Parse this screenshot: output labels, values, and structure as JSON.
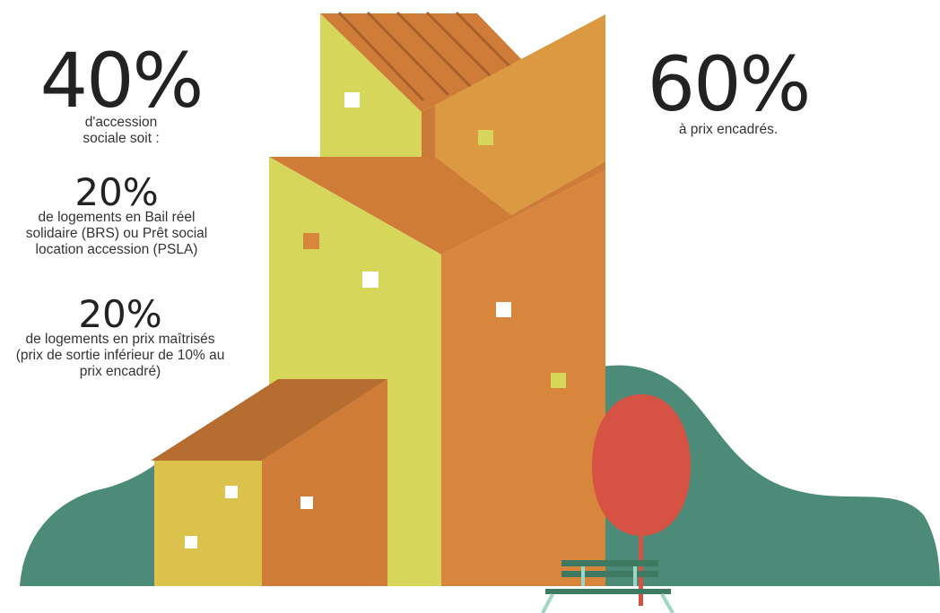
{
  "left_block": {
    "main_percent": "40%",
    "main_caption": "d'accession sociale soit :",
    "sub1_percent": "20%",
    "sub1_caption": "de logements en Bail réel solidaire (BRS) ou Prêt social location accession (PSLA)",
    "sub2_percent": "20%",
    "sub2_caption": "de logements en prix maîtrisés (prix de sortie inférieur de 10% au prix encadré)"
  },
  "right_block": {
    "main_percent": "60%",
    "main_caption": "à prix encadrés."
  },
  "colors": {
    "yellow_green": "#D6D75A",
    "orange": "#D7863C",
    "dark_orange": "#CF7C39",
    "roof_brown": "#B66D2F",
    "mustard": "#DBC24C",
    "teal": "#4B8B77",
    "tree_red": "#D65245",
    "bench_green": "#3E7A61",
    "bench_legs": "#9ED6C6"
  }
}
